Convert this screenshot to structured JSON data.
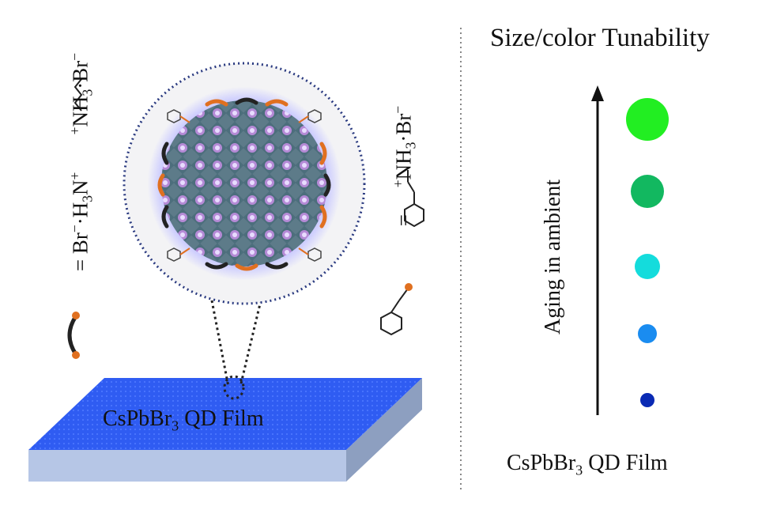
{
  "title": "Size/color Tunability",
  "film_label_left": {
    "prefix": "CsPbBr",
    "sub": "3",
    "suffix": " QD Film"
  },
  "film_label_right": {
    "prefix": "CsPbBr",
    "sub": "3",
    "suffix": " QD Film"
  },
  "aging_label": "Aging in ambient",
  "ligand_1": {
    "equals": "=",
    "t1": "Br",
    "s1": "−",
    "t2": "·H",
    "s2": "3",
    "t3": "N",
    "s3": "+",
    "t4": "+",
    "t5": "NH",
    "s5": "3",
    "t6": "·Br",
    "s6": "−"
  },
  "ligand_2": {
    "equals": "=",
    "t1": "+",
    "t2": "NH",
    "s2": "3",
    "t3": "·Br",
    "s3": "−"
  },
  "dots": [
    {
      "color": "#22ee22"
    },
    {
      "color": "#12b860"
    },
    {
      "color": "#14dcdc"
    },
    {
      "color": "#1a8cf0"
    },
    {
      "color": "#0a2ab4"
    }
  ],
  "colors": {
    "film_top": "#2d5bf0",
    "film_side": "#b6c6e6",
    "crystal": "#5c7a8a",
    "ligand_orange": "#e07020"
  }
}
